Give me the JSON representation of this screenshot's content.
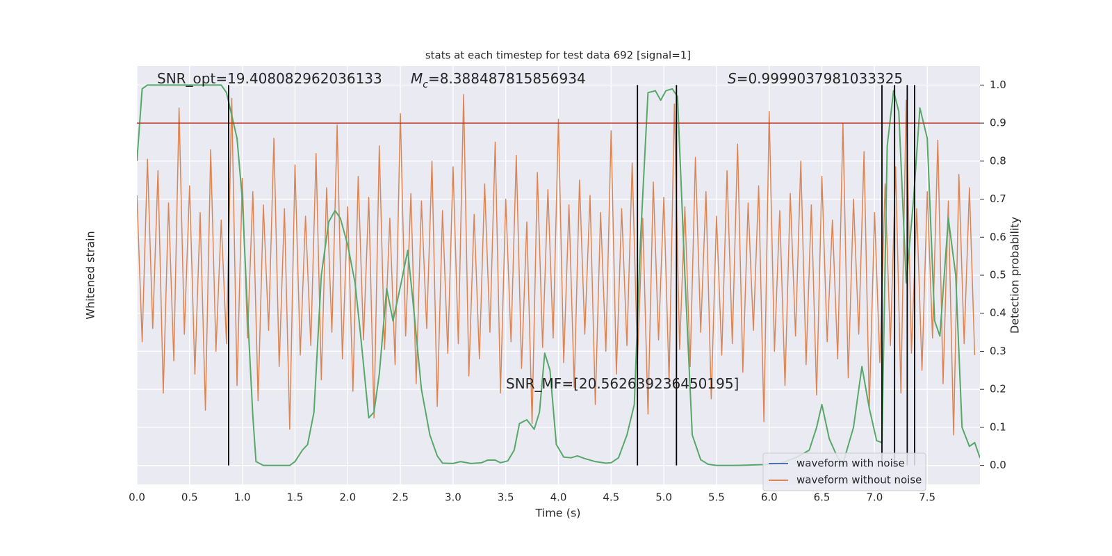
{
  "chart_data": {
    "type": "line",
    "title": "stats at each timestep for test data 692 [signal=1]",
    "xlabel": "Time (s)",
    "ylabel": "Whitened strain",
    "y2label": "Detection probability",
    "xlim": [
      0,
      8
    ],
    "xticks": [
      {
        "value": 0,
        "label": "0.0"
      },
      0.5,
      {
        "value": 1,
        "label": "1.0"
      },
      1.5,
      {
        "value": 2,
        "label": "2.0"
      },
      2.5,
      {
        "value": 3,
        "label": "3.0"
      },
      3.5,
      {
        "value": 4,
        "label": "4.0"
      },
      4.5,
      {
        "value": 5,
        "label": "5.0"
      },
      5.5,
      {
        "value": 6,
        "label": "6.0"
      },
      6.5,
      {
        "value": 7,
        "label": "7.0"
      },
      7.5
    ],
    "ylim": [
      -1.1,
      1.1
    ],
    "y2lim": [
      -0.05,
      1.05
    ],
    "y2ticks": [
      {
        "value": 0,
        "label": "0.0"
      },
      0.1,
      0.2,
      0.3,
      0.4,
      0.5,
      0.6,
      0.7,
      0.8,
      0.9,
      {
        "value": 1,
        "label": "1.0"
      }
    ],
    "grid": true,
    "legend": "lower right",
    "threshold": {
      "value": 0.9,
      "color": "#c0392b"
    },
    "vlines": {
      "color": "#000000",
      "x": [
        0.87,
        4.75,
        5.12,
        7.07,
        7.19,
        7.31,
        7.38
      ]
    },
    "annotations": [
      {
        "text": "SNR_opt=19.408082962036133"
      },
      {
        "symbol": "M",
        "subscript": "c",
        "text": "=8.388487815856934"
      },
      {
        "symbol": "S",
        "text": "=0.9999037981033325"
      },
      {
        "text": "SNR_MF=[20.562639236450195]"
      }
    ],
    "series": [
      {
        "name": "waveform with noise",
        "color": "#4c72b0"
      },
      {
        "name": "waveform without noise",
        "color": "#dd8452",
        "axis": "y",
        "x": [
          0,
          0.05,
          0.1,
          0.15,
          0.2,
          0.25,
          0.3,
          0.35,
          0.4,
          0.45,
          0.5,
          0.55,
          0.6,
          0.65,
          0.7,
          0.75,
          0.8,
          0.85,
          0.9,
          0.95,
          1,
          1.05,
          1.1,
          1.15,
          1.2,
          1.25,
          1.3,
          1.35,
          1.4,
          1.45,
          1.5,
          1.55,
          1.6,
          1.65,
          1.7,
          1.75,
          1.8,
          1.85,
          1.9,
          1.95,
          2,
          2.05,
          2.1,
          2.15,
          2.2,
          2.25,
          2.3,
          2.35,
          2.4,
          2.45,
          2.5,
          2.55,
          2.6,
          2.65,
          2.7,
          2.75,
          2.8,
          2.85,
          2.9,
          2.95,
          3,
          3.05,
          3.1,
          3.15,
          3.2,
          3.25,
          3.3,
          3.35,
          3.4,
          3.45,
          3.5,
          3.55,
          3.6,
          3.65,
          3.7,
          3.75,
          3.8,
          3.85,
          3.9,
          3.95,
          4,
          4.05,
          4.1,
          4.15,
          4.2,
          4.25,
          4.3,
          4.35,
          4.4,
          4.45,
          4.5,
          4.55,
          4.6,
          4.65,
          4.7,
          4.75,
          4.8,
          4.85,
          4.9,
          4.95,
          5,
          5.05,
          5.1,
          5.15,
          5.2,
          5.25,
          5.3,
          5.35,
          5.4,
          5.45,
          5.5,
          5.55,
          5.6,
          5.65,
          5.7,
          5.75,
          5.8,
          5.85,
          5.9,
          5.95,
          6,
          6.05,
          6.1,
          6.15,
          6.2,
          6.25,
          6.3,
          6.35,
          6.4,
          6.45,
          6.5,
          6.55,
          6.6,
          6.65,
          6.7,
          6.75,
          6.8,
          6.85,
          6.9,
          6.95,
          7,
          7.05,
          7.1,
          7.15,
          7.2,
          7.25,
          7.3,
          7.35,
          7.4,
          7.45,
          7.5,
          7.55,
          7.6,
          7.65,
          7.7,
          7.75,
          7.8,
          7.85,
          7.9,
          7.95
        ],
        "values": [
          0.42,
          -0.35,
          0.61,
          -0.28,
          0.55,
          -0.62,
          0.38,
          -0.45,
          0.88,
          -0.31,
          0.47,
          -0.52,
          0.33,
          -0.71,
          0.66,
          -0.4,
          0.29,
          -0.36,
          0.93,
          -0.58,
          0.51,
          -0.33,
          0.44,
          -0.66,
          0.37,
          -0.29,
          0.72,
          -0.48,
          0.35,
          -0.81,
          0.58,
          -0.42,
          0.31,
          -0.37,
          0.64,
          -0.55,
          0.46,
          -0.3,
          0.79,
          -0.44,
          0.36,
          -0.61,
          0.52,
          -0.34,
          0.41,
          -0.75,
          0.68,
          -0.39,
          0.3,
          -0.47,
          0.85,
          -0.32,
          0.43,
          -0.57,
          0.39,
          -0.28,
          0.6,
          -0.69,
          0.34,
          -0.41,
          0.57,
          -0.36,
          0.95,
          -0.53,
          0.32,
          -0.44,
          0.48,
          -0.3,
          0.7,
          -0.62,
          0.4,
          -0.35,
          0.63,
          -0.49,
          0.28,
          -0.78,
          0.54,
          -0.38,
          0.45,
          -0.33,
          0.82,
          -0.46,
          0.37,
          -0.59,
          0.5,
          -0.31,
          0.42,
          -0.68,
          0.33,
          -0.4,
          0.76,
          -0.52,
          0.35,
          -0.37,
          0.59,
          -0.45,
          0.3,
          -0.73,
          0.49,
          -0.34,
          0.41,
          -0.56,
          0.9,
          -0.39,
          0.36,
          -0.48,
          0.62,
          -0.3,
          0.44,
          -0.65,
          0.31,
          -0.42,
          0.55,
          -0.36,
          0.69,
          -0.51,
          0.38,
          -0.29,
          0.47,
          -0.77,
          0.86,
          -0.4,
          0.34,
          -0.58,
          0.43,
          -0.32,
          0.6,
          -0.47,
          0.37,
          -0.63,
          0.52,
          -0.35,
          0.29,
          -0.44,
          0.8,
          -0.54,
          0.4,
          -0.31,
          0.65,
          -0.7,
          0.33,
          -0.46,
          0.48,
          -0.37,
          0.57,
          -0.62,
          0.92,
          -0.41,
          0.35,
          -0.5,
          0.44,
          -0.33,
          0.71,
          -0.57,
          0.39,
          -0.84,
          0.53,
          -0.36,
          0.46,
          -0.42
        ]
      },
      {
        "color": "#55a868",
        "axis": "y2",
        "x": [
          0.0,
          0.05,
          0.1,
          0.8,
          0.85,
          0.9,
          0.95,
          1.0,
          1.05,
          1.1,
          1.13,
          1.2,
          1.45,
          1.5,
          1.57,
          1.62,
          1.68,
          1.75,
          1.82,
          1.88,
          1.93,
          2.0,
          2.07,
          2.12,
          2.2,
          2.25,
          2.3,
          2.37,
          2.43,
          2.5,
          2.57,
          2.62,
          2.7,
          2.78,
          2.85,
          2.9,
          3.0,
          3.07,
          3.17,
          3.27,
          3.33,
          3.4,
          3.45,
          3.52,
          3.58,
          3.63,
          3.7,
          3.77,
          3.82,
          3.87,
          3.92,
          3.98,
          4.05,
          4.12,
          4.18,
          4.25,
          4.35,
          4.45,
          4.5,
          4.57,
          4.65,
          4.72,
          4.78,
          4.85,
          4.92,
          4.97,
          5.02,
          5.08,
          5.13,
          5.2,
          5.27,
          5.35,
          5.42,
          5.5,
          5.7,
          5.95,
          6.1,
          6.25,
          6.38,
          6.45,
          6.5,
          6.57,
          6.65,
          6.7,
          6.8,
          6.88,
          6.95,
          7.02,
          7.07,
          7.12,
          7.18,
          7.23,
          7.3,
          7.37,
          7.43,
          7.5,
          7.57,
          7.62,
          7.7,
          7.77,
          7.83,
          7.9,
          7.95,
          8.0
        ],
        "values": [
          0.8,
          0.99,
          1.0,
          1.0,
          0.98,
          0.92,
          0.86,
          0.7,
          0.4,
          0.13,
          0.01,
          0.0,
          0.0,
          0.01,
          0.04,
          0.055,
          0.14,
          0.5,
          0.64,
          0.67,
          0.65,
          0.58,
          0.48,
          0.35,
          0.125,
          0.14,
          0.24,
          0.465,
          0.38,
          0.47,
          0.565,
          0.43,
          0.2,
          0.08,
          0.025,
          0.006,
          0.005,
          0.01,
          0.005,
          0.007,
          0.014,
          0.014,
          0.007,
          0.012,
          0.04,
          0.11,
          0.12,
          0.095,
          0.14,
          0.295,
          0.25,
          0.055,
          0.022,
          0.02,
          0.025,
          0.018,
          0.01,
          0.006,
          0.007,
          0.02,
          0.08,
          0.16,
          0.6,
          0.98,
          0.985,
          0.96,
          0.985,
          0.99,
          0.97,
          0.5,
          0.08,
          0.015,
          0.003,
          0.0,
          0.0,
          0.002,
          0.005,
          0.02,
          0.04,
          0.1,
          0.16,
          0.07,
          0.02,
          0.005,
          0.1,
          0.26,
          0.15,
          0.065,
          0.06,
          0.84,
          0.985,
          0.93,
          0.48,
          0.7,
          0.94,
          0.86,
          0.38,
          0.34,
          0.65,
          0.5,
          0.1,
          0.05,
          0.06,
          0.02
        ]
      }
    ]
  }
}
